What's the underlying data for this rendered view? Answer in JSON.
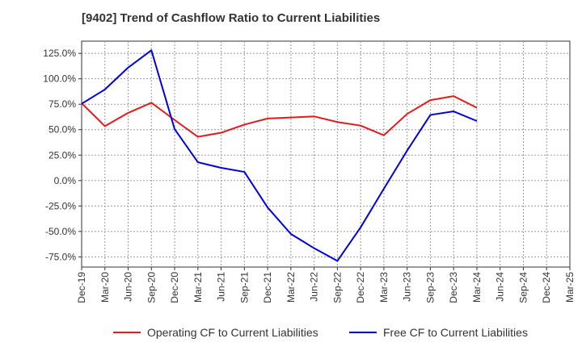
{
  "chart_data": {
    "type": "line",
    "title": "[9402]  Trend of Cashflow Ratio to Current Liabilities",
    "xlabel": "",
    "ylabel": "",
    "ylim": [
      -85,
      137
    ],
    "yticks": [
      -75,
      -50,
      -25,
      0,
      25,
      50,
      75,
      100,
      125
    ],
    "ytick_labels": [
      "-75.0%",
      "-50.0%",
      "-25.0%",
      "0.0%",
      "25.0%",
      "50.0%",
      "75.0%",
      "100.0%",
      "125.0%"
    ],
    "x_tick_labels": [
      "Dec-19",
      "Mar-20",
      "Jun-20",
      "Sep-20",
      "Dec-20",
      "Mar-21",
      "Jun-21",
      "Sep-21",
      "Dec-21",
      "Mar-22",
      "Jun-22",
      "Sep-22",
      "Dec-22",
      "Mar-23",
      "Jun-23",
      "Sep-23",
      "Dec-23",
      "Mar-24",
      "Jun-24",
      "Sep-24",
      "Dec-24",
      "Mar-25"
    ],
    "grid": true,
    "legend_position": "bottom",
    "series": [
      {
        "name": "Operating CF to Current Liabilities",
        "color": "#e31a1c",
        "x": [
          "Dec-19",
          "Mar-20",
          "Jun-20",
          "Sep-20",
          "Dec-20",
          "Mar-21",
          "Jun-21",
          "Sep-21",
          "Dec-21",
          "Mar-22",
          "Jun-22",
          "Sep-22",
          "Dec-22",
          "Mar-23",
          "Jun-23",
          "Sep-23",
          "Dec-23",
          "Mar-24"
        ],
        "values": [
          76.0,
          53.5,
          66.5,
          76.5,
          59.5,
          43.0,
          47.0,
          55.0,
          61.0,
          62.0,
          63.0,
          57.5,
          54.0,
          44.5,
          65.5,
          79.0,
          83.0,
          71.5
        ]
      },
      {
        "name": "Free CF to Current Liabilities",
        "color": "#0000e0",
        "x": [
          "Dec-19",
          "Mar-20",
          "Jun-20",
          "Sep-20",
          "Dec-20",
          "Mar-21",
          "Jun-21",
          "Sep-21",
          "Dec-21",
          "Mar-22",
          "Jun-22",
          "Sep-22",
          "Dec-22",
          "Mar-23",
          "Jun-23",
          "Sep-23",
          "Dec-23",
          "Mar-24"
        ],
        "values": [
          75.5,
          89.5,
          111.0,
          128.0,
          50.5,
          18.0,
          12.5,
          8.5,
          -26.5,
          -52.5,
          -66.5,
          -79.0,
          -46.0,
          -8.0,
          29.5,
          64.5,
          68.0,
          58.5
        ]
      }
    ]
  }
}
